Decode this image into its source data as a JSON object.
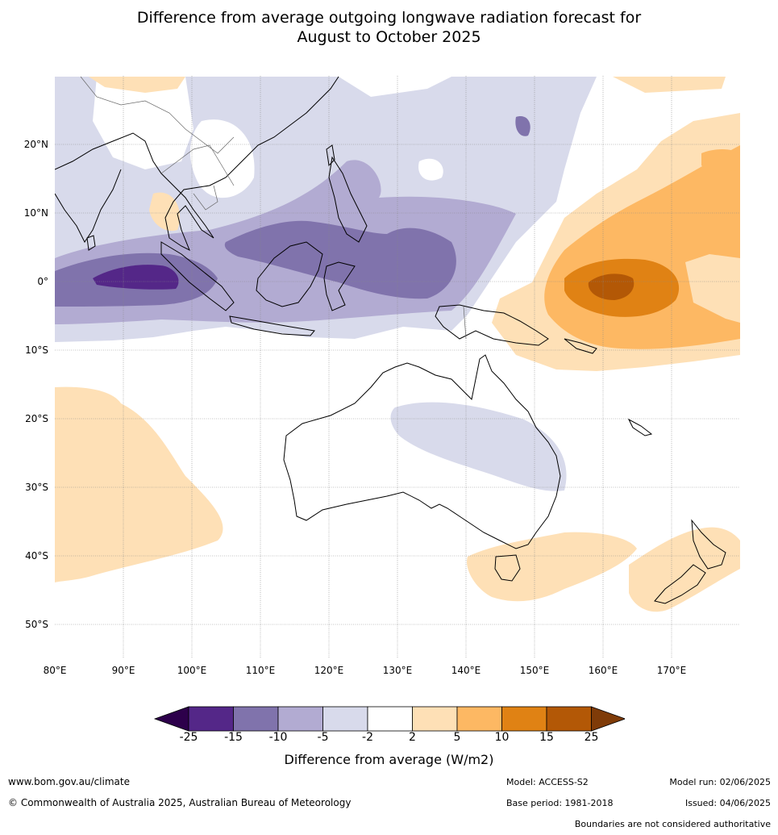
{
  "title_line1": "Difference from average outgoing longwave radiation forecast for",
  "title_line2": "August to October 2025",
  "map": {
    "projection": "plate-carree",
    "lon_range": [
      80,
      180
    ],
    "lat_range": [
      -55,
      30
    ],
    "lon_ticks": [
      "80°E",
      "90°E",
      "100°E",
      "110°E",
      "120°E",
      "130°E",
      "140°E",
      "150°E",
      "160°E",
      "170°E"
    ],
    "lat_ticks": [
      "20°N",
      "10°N",
      "0°",
      "10°S",
      "20°S",
      "30°S",
      "40°S",
      "50°S"
    ],
    "region": "Australia, Maritime Continent, Indian Ocean and Western Pacific",
    "gridlines": true
  },
  "colorbar": {
    "title": "Difference from average (W/m2)",
    "labels": [
      "-25",
      "-15",
      "-10",
      "-5",
      "-2",
      "2",
      "5",
      "10",
      "15",
      "25"
    ],
    "colors": [
      "#2d004b",
      "#542788",
      "#8073ac",
      "#b2abd2",
      "#d8daeb",
      "#ffffff",
      "#fee0b6",
      "#fdb863",
      "#e08214",
      "#b35806",
      "#7f3b08"
    ]
  },
  "footer": {
    "website": "www.bom.gov.au/climate",
    "copyright": "© Commonwealth of Australia 2025, Australian Bureau of Meteorology",
    "model": "Model: ACCESS-S2",
    "base_period": "Base period: 1981-2018",
    "model_run": "Model run: 02/06/2025",
    "issued": "Issued: 04/06/2025",
    "disclaimer": "Boundaries are not considered authoritative"
  }
}
